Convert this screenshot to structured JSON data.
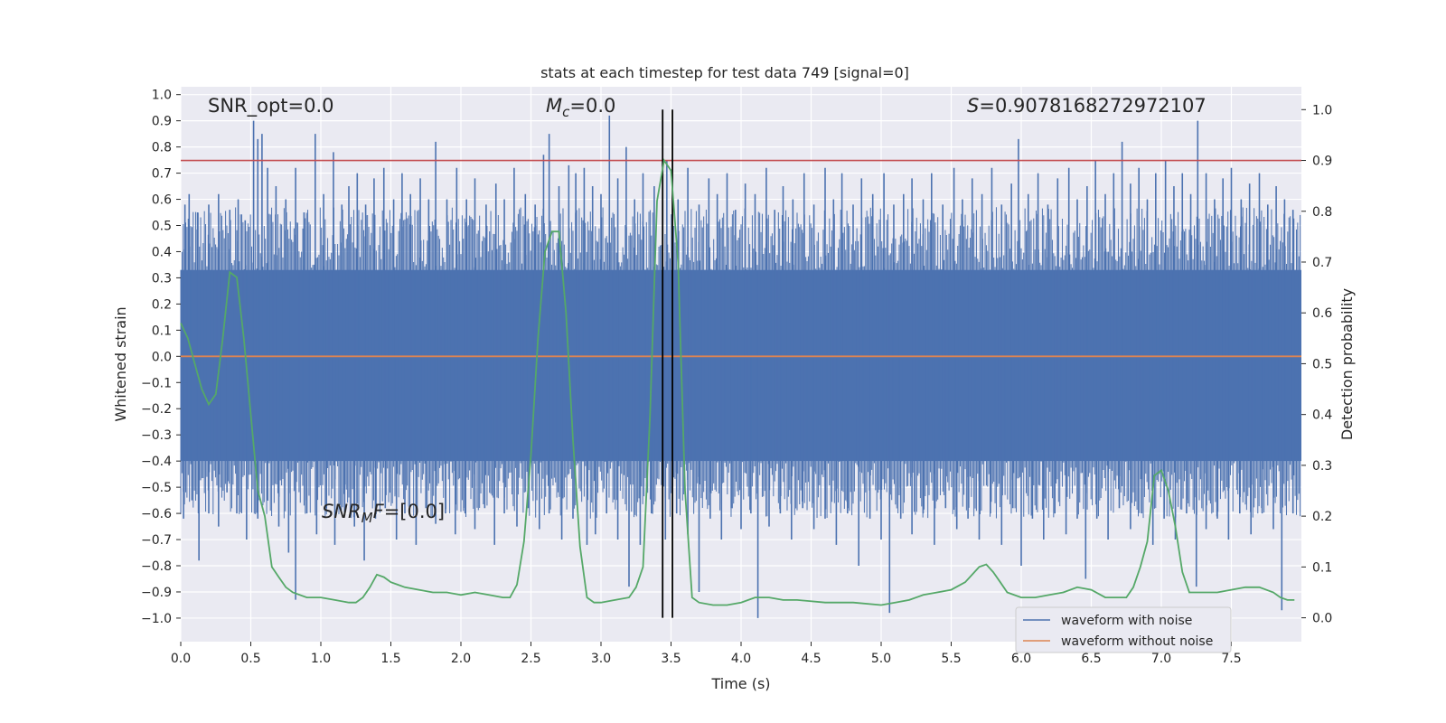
{
  "chart_data": {
    "type": "line",
    "title": "stats at each timestep for test data 749 [signal=0]",
    "xlabel": "Time (s)",
    "ylabel": "Whitened strain",
    "y2label": "Detection probability",
    "xlim": [
      0,
      8
    ],
    "ylim": [
      -1.09,
      1.03
    ],
    "y2lim": [
      -0.047,
      1.045
    ],
    "x_ticks": [
      "0.0",
      "0.5",
      "1.0",
      "1.5",
      "2.0",
      "2.5",
      "3.0",
      "3.5",
      "4.0",
      "4.5",
      "5.0",
      "5.5",
      "6.0",
      "6.5",
      "7.0",
      "7.5"
    ],
    "y_ticks": [
      "1.0",
      "0.9",
      "0.8",
      "0.7",
      "0.6",
      "0.5",
      "0.4",
      "0.3",
      "0.2",
      "0.1",
      "0.0",
      "−0.1",
      "−0.2",
      "−0.3",
      "−0.4",
      "−0.5",
      "−0.6",
      "−0.7",
      "−0.8",
      "−0.9",
      "−1.0"
    ],
    "y2_ticks": [
      "1.0",
      "0.9",
      "0.8",
      "0.7",
      "0.6",
      "0.5",
      "0.4",
      "0.3",
      "0.2",
      "0.1",
      "0.0"
    ],
    "grid": true,
    "legend_position": "lower-right",
    "annotations": {
      "snr_opt": "SNR_opt=0.0",
      "mc_symbol": "M",
      "mc_sub": "c",
      "mc_value": "=0.0",
      "s_symbol": "S",
      "s_value": "=0.9078168272972107",
      "snrmf_symbol": "SNR",
      "snrmf_sub": "M",
      "snrmf_tail": "F",
      "snrmf_value": "=[0.0]"
    },
    "threshold_line": {
      "value": 0.9,
      "axis": "right",
      "color": "#c44e52"
    },
    "vertical_lines": [
      3.44,
      3.51
    ],
    "series": [
      {
        "name": "waveform with noise",
        "axis": "left",
        "color": "#4c72b0",
        "band": [
          -0.4,
          0.33
        ],
        "peaks_up": [
          [
            0.03,
            0.58
          ],
          [
            0.06,
            0.62
          ],
          [
            0.12,
            0.55
          ],
          [
            0.2,
            0.58
          ],
          [
            0.27,
            0.62
          ],
          [
            0.35,
            0.56
          ],
          [
            0.41,
            0.6
          ],
          [
            0.46,
            0.52
          ],
          [
            0.52,
            0.9
          ],
          [
            0.55,
            0.83
          ],
          [
            0.58,
            0.85
          ],
          [
            0.62,
            0.72
          ],
          [
            0.68,
            0.65
          ],
          [
            0.75,
            0.6
          ],
          [
            0.82,
            0.72
          ],
          [
            0.88,
            0.55
          ],
          [
            0.96,
            0.85
          ],
          [
            1.02,
            0.62
          ],
          [
            1.09,
            0.78
          ],
          [
            1.15,
            0.58
          ],
          [
            1.2,
            0.65
          ],
          [
            1.26,
            0.7
          ],
          [
            1.32,
            0.58
          ],
          [
            1.38,
            0.68
          ],
          [
            1.45,
            0.72
          ],
          [
            1.52,
            0.6
          ],
          [
            1.58,
            0.7
          ],
          [
            1.64,
            0.62
          ],
          [
            1.71,
            0.68
          ],
          [
            1.77,
            0.6
          ],
          [
            1.82,
            0.82
          ],
          [
            1.9,
            0.6
          ],
          [
            1.97,
            0.72
          ],
          [
            2.04,
            0.6
          ],
          [
            2.1,
            0.68
          ],
          [
            2.18,
            0.58
          ],
          [
            2.25,
            0.66
          ],
          [
            2.31,
            0.6
          ],
          [
            2.38,
            0.72
          ],
          [
            2.46,
            0.62
          ],
          [
            2.53,
            0.58
          ],
          [
            2.59,
            0.77
          ],
          [
            2.63,
            0.85
          ],
          [
            2.7,
            0.65
          ],
          [
            2.77,
            0.73
          ],
          [
            2.82,
            0.7
          ],
          [
            2.88,
            0.72
          ],
          [
            2.94,
            0.65
          ],
          [
            3.0,
            0.62
          ],
          [
            3.06,
            0.92
          ],
          [
            3.12,
            0.68
          ],
          [
            3.18,
            0.8
          ],
          [
            3.24,
            0.6
          ],
          [
            3.3,
            0.7
          ],
          [
            3.38,
            0.65
          ],
          [
            3.47,
            0.75
          ],
          [
            3.55,
            0.6
          ],
          [
            3.62,
            0.72
          ],
          [
            3.7,
            0.58
          ],
          [
            3.77,
            0.68
          ],
          [
            3.83,
            0.62
          ],
          [
            3.9,
            0.7
          ],
          [
            3.96,
            0.56
          ],
          [
            4.03,
            0.66
          ],
          [
            4.1,
            0.62
          ],
          [
            4.18,
            0.72
          ],
          [
            4.24,
            0.56
          ],
          [
            4.3,
            0.65
          ],
          [
            4.37,
            0.6
          ],
          [
            4.45,
            0.7
          ],
          [
            4.52,
            0.58
          ],
          [
            4.6,
            0.72
          ],
          [
            4.66,
            0.6
          ],
          [
            4.72,
            0.7
          ],
          [
            4.8,
            0.58
          ],
          [
            4.86,
            0.68
          ],
          [
            4.94,
            0.62
          ],
          [
            5.02,
            0.7
          ],
          [
            5.09,
            0.58
          ],
          [
            5.16,
            0.62
          ],
          [
            5.22,
            0.68
          ],
          [
            5.3,
            0.6
          ],
          [
            5.36,
            0.7
          ],
          [
            5.44,
            0.58
          ],
          [
            5.52,
            0.72
          ],
          [
            5.58,
            0.6
          ],
          [
            5.65,
            0.68
          ],
          [
            5.72,
            0.62
          ],
          [
            5.79,
            0.72
          ],
          [
            5.86,
            0.58
          ],
          [
            5.93,
            0.66
          ],
          [
            5.98,
            0.83
          ],
          [
            6.05,
            0.62
          ],
          [
            6.12,
            0.7
          ],
          [
            6.19,
            0.58
          ],
          [
            6.26,
            0.68
          ],
          [
            6.34,
            0.72
          ],
          [
            6.4,
            0.6
          ],
          [
            6.47,
            0.65
          ],
          [
            6.53,
            0.75
          ],
          [
            6.6,
            0.62
          ],
          [
            6.66,
            0.7
          ],
          [
            6.72,
            0.82
          ],
          [
            6.78,
            0.66
          ],
          [
            6.84,
            0.72
          ],
          [
            6.9,
            0.6
          ],
          [
            6.96,
            0.7
          ],
          [
            7.03,
            0.75
          ],
          [
            7.09,
            0.65
          ],
          [
            7.15,
            0.7
          ],
          [
            7.21,
            0.62
          ],
          [
            7.26,
            0.9
          ],
          [
            7.32,
            0.7
          ],
          [
            7.38,
            0.6
          ],
          [
            7.44,
            0.68
          ],
          [
            7.5,
            0.72
          ],
          [
            7.57,
            0.6
          ],
          [
            7.63,
            0.66
          ],
          [
            7.7,
            0.7
          ],
          [
            7.76,
            0.58
          ],
          [
            7.82,
            0.65
          ],
          [
            7.88,
            0.6
          ],
          [
            7.94,
            0.56
          ]
        ],
        "peaks_down": [
          [
            0.02,
            -0.62
          ],
          [
            0.08,
            -0.55
          ],
          [
            0.13,
            -0.78
          ],
          [
            0.2,
            -0.6
          ],
          [
            0.27,
            -0.65
          ],
          [
            0.33,
            -0.52
          ],
          [
            0.4,
            -0.6
          ],
          [
            0.47,
            -0.7
          ],
          [
            0.55,
            -0.62
          ],
          [
            0.62,
            -0.55
          ],
          [
            0.7,
            -0.65
          ],
          [
            0.77,
            -0.75
          ],
          [
            0.82,
            -0.93
          ],
          [
            0.9,
            -0.6
          ],
          [
            0.97,
            -0.68
          ],
          [
            1.04,
            -0.58
          ],
          [
            1.1,
            -0.72
          ],
          [
            1.17,
            -0.6
          ],
          [
            1.24,
            -0.65
          ],
          [
            1.31,
            -0.78
          ],
          [
            1.39,
            -0.62
          ],
          [
            1.46,
            -0.58
          ],
          [
            1.54,
            -0.7
          ],
          [
            1.6,
            -0.6
          ],
          [
            1.68,
            -0.72
          ],
          [
            1.75,
            -0.58
          ],
          [
            1.82,
            -0.64
          ],
          [
            1.89,
            -0.6
          ],
          [
            1.96,
            -0.68
          ],
          [
            2.03,
            -0.6
          ],
          [
            2.1,
            -0.66
          ],
          [
            2.17,
            -0.58
          ],
          [
            2.24,
            -0.72
          ],
          [
            2.31,
            -0.6
          ],
          [
            2.4,
            -0.65
          ],
          [
            2.48,
            -0.58
          ],
          [
            2.56,
            -0.66
          ],
          [
            2.63,
            -0.6
          ],
          [
            2.72,
            -0.7
          ],
          [
            2.8,
            -0.62
          ],
          [
            2.9,
            -0.72
          ],
          [
            2.96,
            -0.68
          ],
          [
            3.04,
            -0.6
          ],
          [
            3.12,
            -0.7
          ],
          [
            3.2,
            -0.88
          ],
          [
            3.28,
            -0.72
          ],
          [
            3.36,
            -0.6
          ],
          [
            3.46,
            -0.7
          ],
          [
            3.54,
            -0.6
          ],
          [
            3.62,
            -0.68
          ],
          [
            3.7,
            -0.9
          ],
          [
            3.78,
            -0.62
          ],
          [
            3.86,
            -0.7
          ],
          [
            3.93,
            -0.58
          ],
          [
            4.0,
            -0.66
          ],
          [
            4.07,
            -0.6
          ],
          [
            4.12,
            -1.0
          ],
          [
            4.2,
            -0.65
          ],
          [
            4.28,
            -0.6
          ],
          [
            4.36,
            -0.7
          ],
          [
            4.44,
            -0.58
          ],
          [
            4.52,
            -0.66
          ],
          [
            4.6,
            -0.62
          ],
          [
            4.68,
            -0.72
          ],
          [
            4.76,
            -0.6
          ],
          [
            4.84,
            -0.8
          ],
          [
            4.92,
            -0.62
          ],
          [
            5.0,
            -0.7
          ],
          [
            5.06,
            -0.98
          ],
          [
            5.14,
            -0.62
          ],
          [
            5.22,
            -0.68
          ],
          [
            5.3,
            -0.6
          ],
          [
            5.38,
            -0.72
          ],
          [
            5.46,
            -0.58
          ],
          [
            5.54,
            -0.66
          ],
          [
            5.62,
            -0.62
          ],
          [
            5.7,
            -0.7
          ],
          [
            5.78,
            -0.6
          ],
          [
            5.86,
            -0.72
          ],
          [
            5.94,
            -0.58
          ],
          [
            6.0,
            -0.8
          ],
          [
            6.08,
            -0.62
          ],
          [
            6.16,
            -0.7
          ],
          [
            6.24,
            -0.6
          ],
          [
            6.32,
            -0.68
          ],
          [
            6.4,
            -0.62
          ],
          [
            6.46,
            -0.85
          ],
          [
            6.54,
            -0.62
          ],
          [
            6.62,
            -0.7
          ],
          [
            6.7,
            -0.58
          ],
          [
            6.78,
            -0.66
          ],
          [
            6.86,
            -0.6
          ],
          [
            6.94,
            -0.72
          ],
          [
            7.02,
            -0.62
          ],
          [
            7.1,
            -0.7
          ],
          [
            7.18,
            -0.6
          ],
          [
            7.25,
            -0.88
          ],
          [
            7.32,
            -0.66
          ],
          [
            7.4,
            -0.62
          ],
          [
            7.48,
            -0.7
          ],
          [
            7.56,
            -0.6
          ],
          [
            7.64,
            -0.68
          ],
          [
            7.72,
            -0.6
          ],
          [
            7.8,
            -0.66
          ],
          [
            7.86,
            -0.97
          ],
          [
            7.94,
            -0.6
          ]
        ]
      },
      {
        "name": "waveform without noise",
        "axis": "left",
        "color": "#dd8452",
        "x": [
          0,
          8
        ],
        "y": [
          0.0,
          0.0
        ]
      },
      {
        "name": "",
        "axis": "right",
        "color": "#55a868",
        "x": [
          0.0,
          0.05,
          0.1,
          0.15,
          0.2,
          0.25,
          0.3,
          0.35,
          0.4,
          0.45,
          0.5,
          0.55,
          0.6,
          0.65,
          0.7,
          0.75,
          0.8,
          0.9,
          1.0,
          1.1,
          1.2,
          1.25,
          1.3,
          1.35,
          1.4,
          1.45,
          1.5,
          1.55,
          1.6,
          1.7,
          1.8,
          1.9,
          2.0,
          2.1,
          2.2,
          2.3,
          2.35,
          2.4,
          2.45,
          2.5,
          2.55,
          2.6,
          2.65,
          2.7,
          2.75,
          2.8,
          2.85,
          2.9,
          2.95,
          3.0,
          3.1,
          3.2,
          3.25,
          3.3,
          3.35,
          3.4,
          3.45,
          3.5,
          3.55,
          3.6,
          3.65,
          3.7,
          3.8,
          3.9,
          4.0,
          4.1,
          4.2,
          4.3,
          4.4,
          4.6,
          4.8,
          5.0,
          5.1,
          5.2,
          5.3,
          5.4,
          5.5,
          5.6,
          5.7,
          5.75,
          5.8,
          5.85,
          5.9,
          6.0,
          6.1,
          6.2,
          6.3,
          6.4,
          6.5,
          6.6,
          6.7,
          6.75,
          6.8,
          6.85,
          6.9,
          6.95,
          7.0,
          7.05,
          7.1,
          7.15,
          7.2,
          7.25,
          7.3,
          7.4,
          7.5,
          7.6,
          7.7,
          7.8,
          7.85,
          7.9,
          7.95
        ],
        "y": [
          0.58,
          0.55,
          0.5,
          0.45,
          0.42,
          0.44,
          0.55,
          0.68,
          0.67,
          0.55,
          0.4,
          0.25,
          0.2,
          0.1,
          0.08,
          0.06,
          0.05,
          0.04,
          0.04,
          0.035,
          0.03,
          0.03,
          0.04,
          0.06,
          0.085,
          0.08,
          0.07,
          0.065,
          0.06,
          0.055,
          0.05,
          0.05,
          0.045,
          0.05,
          0.045,
          0.04,
          0.04,
          0.065,
          0.15,
          0.32,
          0.55,
          0.72,
          0.76,
          0.76,
          0.6,
          0.35,
          0.14,
          0.04,
          0.03,
          0.03,
          0.035,
          0.04,
          0.06,
          0.1,
          0.4,
          0.82,
          0.9,
          0.88,
          0.7,
          0.25,
          0.04,
          0.03,
          0.025,
          0.025,
          0.03,
          0.04,
          0.04,
          0.035,
          0.035,
          0.03,
          0.03,
          0.025,
          0.03,
          0.035,
          0.045,
          0.05,
          0.055,
          0.07,
          0.1,
          0.105,
          0.09,
          0.07,
          0.05,
          0.04,
          0.04,
          0.045,
          0.05,
          0.06,
          0.055,
          0.04,
          0.04,
          0.04,
          0.06,
          0.1,
          0.15,
          0.28,
          0.29,
          0.25,
          0.18,
          0.09,
          0.05,
          0.05,
          0.05,
          0.05,
          0.055,
          0.06,
          0.06,
          0.05,
          0.04,
          0.035,
          0.035
        ]
      }
    ]
  }
}
